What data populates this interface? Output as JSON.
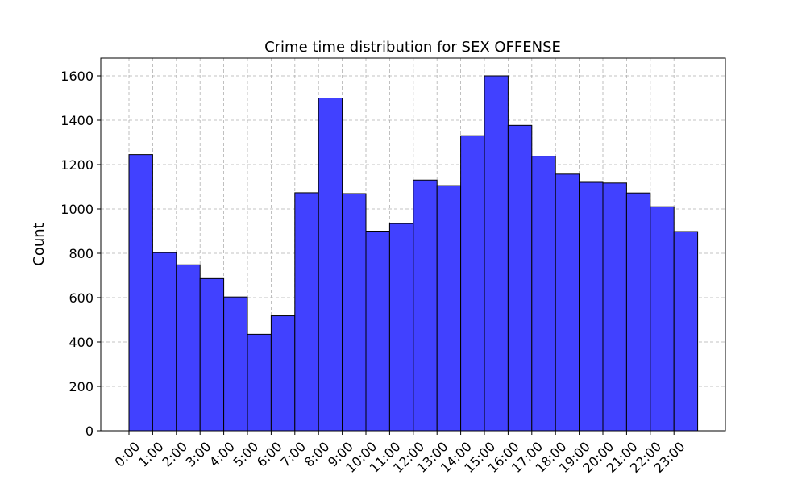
{
  "chart_data": {
    "type": "bar",
    "title": "Crime time distribution for SEX OFFENSE",
    "xlabel": "",
    "ylabel": "Count",
    "categories": [
      "0:00",
      "1:00",
      "2:00",
      "3:00",
      "4:00",
      "5:00",
      "6:00",
      "7:00",
      "8:00",
      "9:00",
      "10:00",
      "11:00",
      "12:00",
      "13:00",
      "14:00",
      "15:00",
      "16:00",
      "17:00",
      "18:00",
      "19:00",
      "20:00",
      "21:00",
      "22:00",
      "23:00"
    ],
    "values": [
      1245,
      803,
      748,
      686,
      603,
      435,
      518,
      1073,
      1500,
      1069,
      900,
      934,
      1130,
      1105,
      1330,
      1600,
      1377,
      1238,
      1157,
      1120,
      1117,
      1072,
      1010,
      898
    ],
    "ylim": [
      0,
      1680
    ],
    "yticks": [
      0,
      200,
      400,
      600,
      800,
      1000,
      1200,
      1400,
      1600
    ],
    "grid": true,
    "legend": "none",
    "bar_color": "#4141ff",
    "edge_color": "#000000"
  }
}
